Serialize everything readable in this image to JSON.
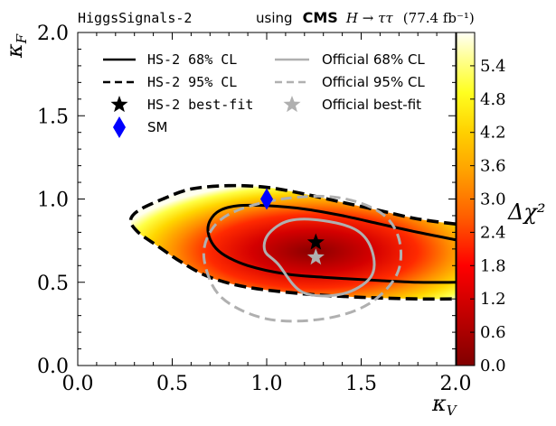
{
  "chart_data": {
    "type": "heatmap",
    "title_left": "HiggsSignals-2",
    "title_right_prefix": "using",
    "title_right_bold": "CMS",
    "title_right_process": "H → ττ",
    "title_right_lumi": "(77.4 fb⁻¹)",
    "xlabel": "κ_V",
    "ylabel": "κ_F",
    "xlim": [
      0.0,
      2.0
    ],
    "ylim": [
      0.0,
      2.0
    ],
    "xticks": [
      0.0,
      0.5,
      1.0,
      1.5,
      2.0
    ],
    "xtick_labels": [
      "0.0",
      "0.5",
      "1.0",
      "1.5",
      "2.0"
    ],
    "yticks": [
      0.0,
      0.5,
      1.0,
      1.5,
      2.0
    ],
    "ytick_labels": [
      "0.0",
      "0.5",
      "1.0",
      "1.5",
      "2.0"
    ],
    "colorbar": {
      "label": "Δχ²",
      "range": [
        0.0,
        6.0
      ],
      "ticks": [
        0.0,
        0.6,
        1.2,
        1.8,
        2.4,
        3.0,
        3.6,
        4.2,
        4.8,
        5.4
      ],
      "tick_labels": [
        "0.0",
        "0.6",
        "1.2",
        "1.8",
        "2.4",
        "3.0",
        "3.6",
        "4.2",
        "4.8",
        "5.4"
      ],
      "colormap": [
        "#8b0000",
        "#ff0000",
        "#ff8c00",
        "#ffd700",
        "#ffff33",
        "#fffff0"
      ]
    },
    "legend": {
      "position": "top-left",
      "entries": [
        {
          "label": "HS-2 68% CL",
          "style": "solid",
          "color": "#000000"
        },
        {
          "label": "HS-2 95% CL",
          "style": "dashed",
          "color": "#000000"
        },
        {
          "label": "HS-2 best-fit",
          "style": "star",
          "color": "#000000"
        },
        {
          "label": "SM",
          "style": "diamond",
          "color": "#0000ff"
        },
        {
          "label": "Official 68% CL",
          "style": "solid",
          "color": "#b0b0b0"
        },
        {
          "label": "Official 95% CL",
          "style": "dashed",
          "color": "#b0b0b0"
        },
        {
          "label": "Official best-fit",
          "style": "star",
          "color": "#b0b0b0"
        }
      ]
    },
    "contours": {
      "hs2_68": [
        [
          2.0,
          0.755
        ],
        [
          1.8,
          0.8
        ],
        [
          1.6,
          0.85
        ],
        [
          1.4,
          0.9
        ],
        [
          1.2,
          0.94
        ],
        [
          1.0,
          0.96
        ],
        [
          0.85,
          0.96
        ],
        [
          0.75,
          0.93
        ],
        [
          0.7,
          0.87
        ],
        [
          0.69,
          0.8
        ],
        [
          0.72,
          0.72
        ],
        [
          0.78,
          0.66
        ],
        [
          0.9,
          0.6
        ],
        [
          1.1,
          0.55
        ],
        [
          1.3,
          0.53
        ],
        [
          1.6,
          0.51
        ],
        [
          1.8,
          0.5
        ],
        [
          2.0,
          0.5
        ]
      ],
      "hs2_95": [
        [
          2.0,
          0.85
        ],
        [
          1.8,
          0.88
        ],
        [
          1.6,
          0.93
        ],
        [
          1.4,
          0.98
        ],
        [
          1.2,
          1.03
        ],
        [
          1.0,
          1.07
        ],
        [
          0.8,
          1.08
        ],
        [
          0.6,
          1.06
        ],
        [
          0.45,
          1.0
        ],
        [
          0.32,
          0.93
        ],
        [
          0.28,
          0.87
        ],
        [
          0.32,
          0.8
        ],
        [
          0.42,
          0.72
        ],
        [
          0.55,
          0.62
        ],
        [
          0.7,
          0.53
        ],
        [
          0.9,
          0.47
        ],
        [
          1.2,
          0.43
        ],
        [
          1.5,
          0.41
        ],
        [
          1.8,
          0.4
        ],
        [
          2.0,
          0.4
        ]
      ],
      "official_68": [
        [
          1.06,
          0.61
        ],
        [
          1.19,
          0.44
        ],
        [
          1.4,
          0.43
        ],
        [
          1.55,
          0.53
        ],
        [
          1.56,
          0.68
        ],
        [
          1.48,
          0.81
        ],
        [
          1.3,
          0.87
        ],
        [
          1.12,
          0.87
        ],
        [
          1.01,
          0.79
        ],
        [
          0.99,
          0.69
        ]
      ],
      "official_95": [
        [
          0.76,
          0.41
        ],
        [
          1.0,
          0.28
        ],
        [
          1.3,
          0.28
        ],
        [
          1.54,
          0.37
        ],
        [
          1.69,
          0.55
        ],
        [
          1.7,
          0.76
        ],
        [
          1.6,
          0.92
        ],
        [
          1.37,
          1.01
        ],
        [
          1.08,
          1.0
        ],
        [
          0.82,
          0.92
        ],
        [
          0.7,
          0.8
        ],
        [
          0.67,
          0.63
        ]
      ]
    },
    "best_fit_hs2": [
      1.26,
      0.74
    ],
    "best_fit_official": [
      1.26,
      0.65
    ],
    "sm_point": [
      1.0,
      1.0
    ]
  }
}
